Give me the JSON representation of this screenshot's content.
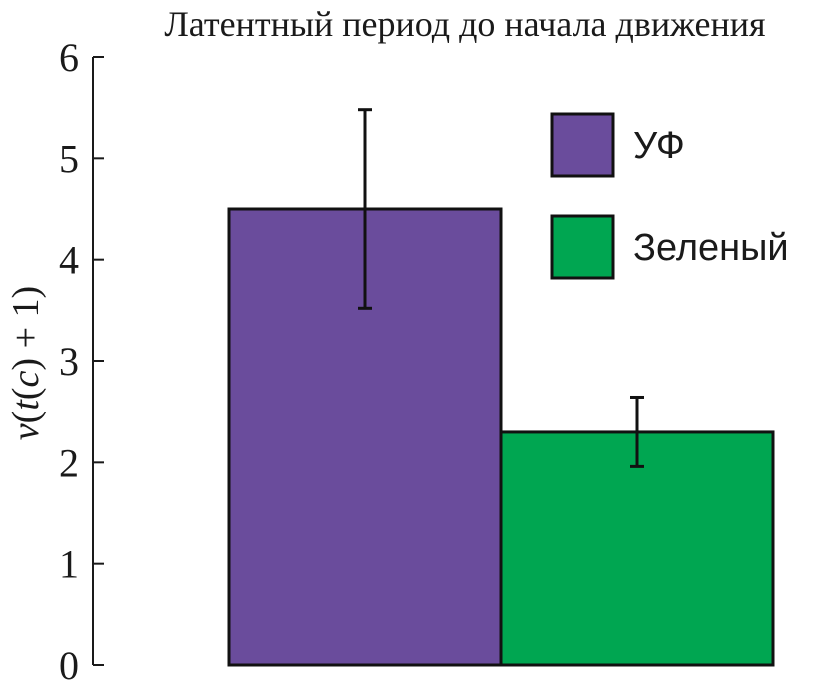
{
  "chart_data": {
    "type": "bar",
    "title": "Латентный период до начала движения",
    "xlabel": "",
    "ylabel": {
      "parts": [
        {
          "text": "v",
          "italic": true
        },
        {
          "text": "(",
          "italic": false
        },
        {
          "text": "t",
          "italic": true
        },
        {
          "text": "(",
          "italic": false
        },
        {
          "text": "c",
          "italic": true
        },
        {
          "text": ") + 1)",
          "italic": false
        }
      ]
    },
    "ylim": [
      0,
      6
    ],
    "yticks": [
      "0",
      "1",
      "2",
      "3",
      "4",
      "5",
      "6"
    ],
    "grid": false,
    "legend_position": "top-right",
    "series": [
      {
        "name": "УФ",
        "value": 4.5,
        "error": 0.98,
        "color": "#6a4c9c"
      },
      {
        "name": "Зеленый",
        "value": 2.3,
        "error": 0.34,
        "color": "#00a651"
      }
    ]
  }
}
